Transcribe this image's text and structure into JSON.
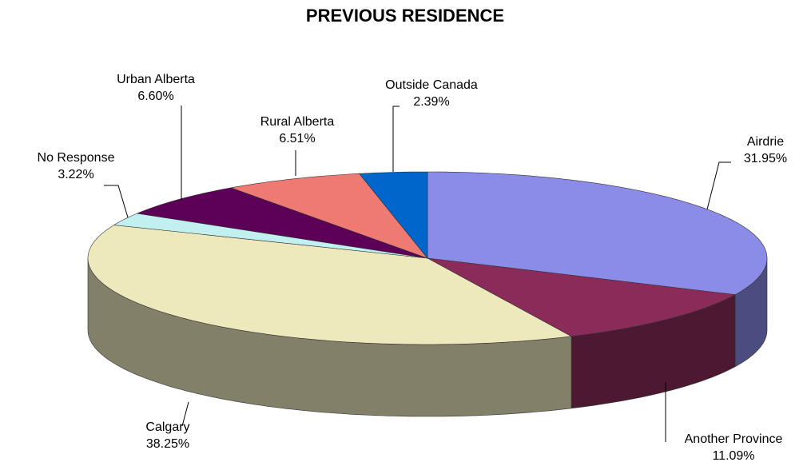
{
  "chart_data": {
    "type": "pie3d",
    "title": "PREVIOUS RESIDENCE",
    "categories": [
      "Airdrie",
      "Another Province",
      "Calgary",
      "Outside Canada",
      "Rural Alberta",
      "Urban Alberta",
      "No Response"
    ],
    "values": [
      31.95,
      11.09,
      38.25,
      2.39,
      6.51,
      6.6,
      3.22
    ],
    "value_labels": [
      "31.95%",
      "11.09%",
      "38.25%",
      "2.39%",
      "6.51%",
      "6.60%",
      "3.22%"
    ],
    "colors": [
      "#8b8be8",
      "#8b2b5a",
      "#ede9bd",
      "#c2f0f0",
      "#5c0058",
      "#ef7a74",
      "#0066cc"
    ]
  }
}
